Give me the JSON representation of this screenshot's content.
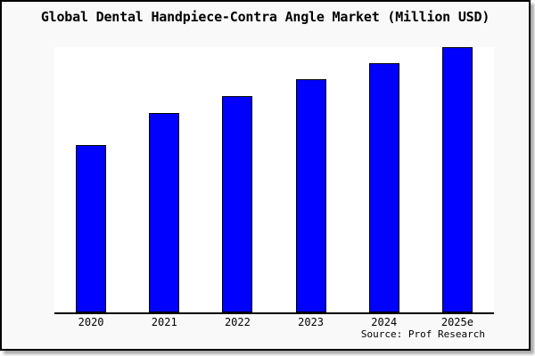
{
  "window": {
    "background_color": "#f9f9f9",
    "frame_color": "#000000",
    "page_color": "#ffffff"
  },
  "header": {
    "title": "Global Dental Handpiece-Contra Angle Market (Million USD)"
  },
  "chart_data": {
    "type": "bar",
    "title": "Global Dental Handpiece-Contra Angle Market (Million USD)",
    "categories": [
      "2020",
      "2021",
      "2022",
      "2023",
      "2024",
      "2025e"
    ],
    "values": [
      63.0,
      75.3,
      81.7,
      88.0,
      94.0,
      100.0
    ],
    "unit": "relative bar height, % of 2025e bar (no y-axis scale shown in chart)",
    "xlabel": "",
    "ylabel": "",
    "ylim": [
      0,
      100
    ],
    "grid": false,
    "legend": "none",
    "bar_color": "#0000ff",
    "bar_border_color": "#000000",
    "axis_color": "#000000",
    "plot_background": "#ffffff"
  },
  "footer": {
    "source_label": "Source: Prof Research"
  }
}
